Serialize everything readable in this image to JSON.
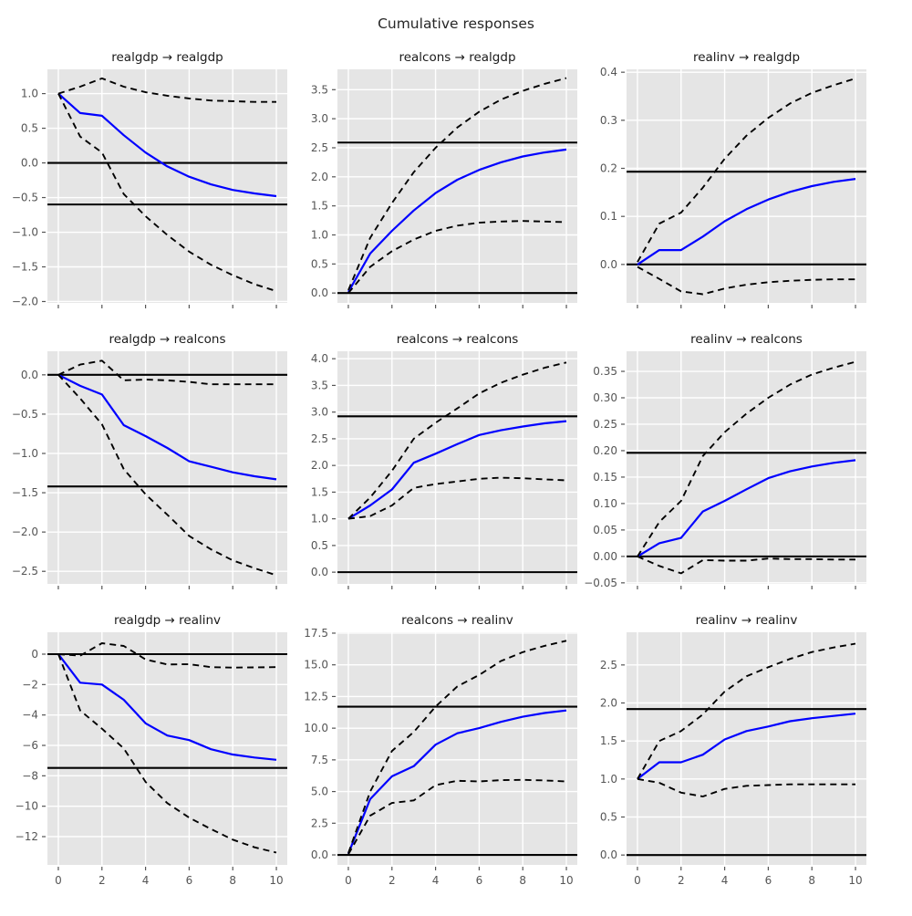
{
  "figure": {
    "title": "Cumulative responses"
  },
  "colors": {
    "plot_bg": "#e5e5e5",
    "grid": "#ffffff",
    "response_line": "#0000ff",
    "band_line": "#000000",
    "hline": "#000000",
    "tick": "#555555"
  },
  "chart_data": {
    "type": "line",
    "title": "Cumulative responses",
    "x": [
      0,
      1,
      2,
      3,
      4,
      5,
      6,
      7,
      8,
      9,
      10
    ],
    "xlim": [
      -0.5,
      10.5
    ],
    "x_ticks": [
      0,
      2,
      4,
      6,
      8,
      10
    ],
    "x_tick_labels": [
      "0",
      "2",
      "4",
      "6",
      "8",
      "10"
    ],
    "grid": true,
    "legend": "none",
    "line_styles": {
      "response": "solid blue",
      "upper_ci": "dashed black",
      "lower_ci": "dashed black",
      "hlines": "solid black"
    },
    "subplots": [
      {
        "title": "realgdp → realgdp",
        "row": 0,
        "col": 0,
        "ylim": [
          -2.02,
          1.35
        ],
        "yticks": [
          1.0,
          0.5,
          0.0,
          -0.5,
          -1.0,
          -1.5,
          -2.0
        ],
        "ytick_labels": [
          "1.0",
          "0.5",
          "0.0",
          "−0.5",
          "−1.0",
          "−1.5",
          "−2.0"
        ],
        "show_x_labels": false,
        "hlines": [
          0.0,
          -0.6
        ],
        "series": [
          {
            "name": "response",
            "values": [
              1.0,
              0.72,
              0.68,
              0.4,
              0.15,
              -0.05,
              -0.2,
              -0.31,
              -0.39,
              -0.44,
              -0.48
            ]
          },
          {
            "name": "upper_ci",
            "values": [
              1.0,
              1.1,
              1.22,
              1.1,
              1.02,
              0.97,
              0.93,
              0.9,
              0.89,
              0.88,
              0.88
            ]
          },
          {
            "name": "lower_ci",
            "values": [
              1.0,
              0.38,
              0.15,
              -0.45,
              -0.77,
              -1.04,
              -1.28,
              -1.47,
              -1.62,
              -1.75,
              -1.85
            ]
          }
        ]
      },
      {
        "title": "realcons → realgdp",
        "row": 0,
        "col": 1,
        "ylim": [
          -0.17,
          3.85
        ],
        "yticks": [
          3.5,
          3.0,
          2.5,
          2.0,
          1.5,
          1.0,
          0.5,
          0.0
        ],
        "ytick_labels": [
          "3.5",
          "3.0",
          "2.5",
          "2.0",
          "1.5",
          "1.0",
          "0.5",
          "0.0"
        ],
        "show_x_labels": false,
        "hlines": [
          0.0,
          2.59
        ],
        "series": [
          {
            "name": "response",
            "values": [
              0.02,
              0.68,
              1.07,
              1.42,
              1.72,
              1.95,
              2.12,
              2.25,
              2.35,
              2.42,
              2.47
            ]
          },
          {
            "name": "upper_ci",
            "values": [
              0.05,
              0.95,
              1.55,
              2.08,
              2.5,
              2.85,
              3.12,
              3.33,
              3.48,
              3.6,
              3.7
            ]
          },
          {
            "name": "lower_ci",
            "values": [
              0.0,
              0.45,
              0.72,
              0.92,
              1.07,
              1.16,
              1.21,
              1.23,
              1.24,
              1.23,
              1.22
            ]
          }
        ]
      },
      {
        "title": "realinv → realgdp",
        "row": 0,
        "col": 2,
        "ylim": [
          -0.08,
          0.406
        ],
        "yticks": [
          0.4,
          0.3,
          0.2,
          0.1,
          0.0
        ],
        "ytick_labels": [
          "0.4",
          "0.3",
          "0.2",
          "0.1",
          "0.0"
        ],
        "show_x_labels": false,
        "hlines": [
          0.0,
          0.193
        ],
        "series": [
          {
            "name": "response",
            "values": [
              0.0,
              0.03,
              0.03,
              0.058,
              0.09,
              0.115,
              0.135,
              0.151,
              0.163,
              0.172,
              0.178
            ]
          },
          {
            "name": "upper_ci",
            "values": [
              0.005,
              0.085,
              0.108,
              0.16,
              0.22,
              0.268,
              0.305,
              0.335,
              0.357,
              0.373,
              0.387
            ]
          },
          {
            "name": "lower_ci",
            "values": [
              -0.005,
              -0.03,
              -0.056,
              -0.062,
              -0.05,
              -0.042,
              -0.037,
              -0.034,
              -0.032,
              -0.031,
              -0.031
            ]
          }
        ]
      },
      {
        "title": "realgdp → realcons",
        "row": 1,
        "col": 0,
        "ylim": [
          -2.66,
          0.3
        ],
        "yticks": [
          0.0,
          -0.5,
          -1.0,
          -1.5,
          -2.0,
          -2.5
        ],
        "ytick_labels": [
          "0.0",
          "−0.5",
          "−1.0",
          "−1.5",
          "−2.0",
          "−2.5"
        ],
        "show_x_labels": false,
        "hlines": [
          0.0,
          -1.42
        ],
        "series": [
          {
            "name": "response",
            "values": [
              0.0,
              -0.14,
              -0.25,
              -0.64,
              -0.78,
              -0.93,
              -1.1,
              -1.17,
              -1.24,
              -1.29,
              -1.33
            ]
          },
          {
            "name": "upper_ci",
            "values": [
              0.0,
              0.13,
              0.18,
              -0.07,
              -0.06,
              -0.07,
              -0.09,
              -0.12,
              -0.12,
              -0.12,
              -0.12
            ]
          },
          {
            "name": "lower_ci",
            "values": [
              0.0,
              -0.3,
              -0.63,
              -1.2,
              -1.52,
              -1.78,
              -2.05,
              -2.22,
              -2.36,
              -2.46,
              -2.55
            ]
          }
        ]
      },
      {
        "title": "realcons → realcons",
        "row": 1,
        "col": 1,
        "ylim": [
          -0.22,
          4.14
        ],
        "yticks": [
          4.0,
          3.5,
          3.0,
          2.5,
          2.0,
          1.5,
          1.0,
          0.5,
          0.0
        ],
        "ytick_labels": [
          "4.0",
          "3.5",
          "3.0",
          "2.5",
          "2.0",
          "1.5",
          "1.0",
          "0.5",
          "0.0"
        ],
        "show_x_labels": false,
        "hlines": [
          0.0,
          2.92
        ],
        "series": [
          {
            "name": "response",
            "values": [
              1.0,
              1.25,
              1.55,
              2.05,
              2.22,
              2.4,
              2.57,
              2.66,
              2.73,
              2.79,
              2.83
            ]
          },
          {
            "name": "upper_ci",
            "values": [
              1.0,
              1.4,
              1.9,
              2.5,
              2.8,
              3.07,
              3.35,
              3.55,
              3.7,
              3.83,
              3.93
            ]
          },
          {
            "name": "lower_ci",
            "values": [
              1.0,
              1.05,
              1.25,
              1.58,
              1.65,
              1.7,
              1.75,
              1.77,
              1.76,
              1.74,
              1.72
            ]
          }
        ]
      },
      {
        "title": "realinv → realcons",
        "row": 1,
        "col": 2,
        "ylim": [
          -0.052,
          0.388
        ],
        "yticks": [
          0.35,
          0.3,
          0.25,
          0.2,
          0.15,
          0.1,
          0.05,
          0.0,
          -0.05
        ],
        "ytick_labels": [
          "0.35",
          "0.30",
          "0.25",
          "0.20",
          "0.15",
          "0.10",
          "0.05",
          "0.00",
          "−0.05"
        ],
        "show_x_labels": false,
        "hlines": [
          0.0,
          0.196
        ],
        "series": [
          {
            "name": "response",
            "values": [
              0.0,
              0.025,
              0.035,
              0.085,
              0.105,
              0.127,
              0.148,
              0.161,
              0.17,
              0.177,
              0.182
            ]
          },
          {
            "name": "upper_ci",
            "values": [
              0.0,
              0.065,
              0.105,
              0.19,
              0.235,
              0.27,
              0.3,
              0.325,
              0.344,
              0.357,
              0.368
            ]
          },
          {
            "name": "lower_ci",
            "values": [
              0.0,
              -0.018,
              -0.032,
              -0.007,
              -0.008,
              -0.008,
              -0.004,
              -0.005,
              -0.005,
              -0.006,
              -0.006
            ]
          }
        ]
      },
      {
        "title": "realgdp → realinv",
        "row": 2,
        "col": 0,
        "ylim": [
          -13.86,
          1.44
        ],
        "yticks": [
          0,
          -2,
          -4,
          -6,
          -8,
          -10,
          -12
        ],
        "ytick_labels": [
          "0",
          "−2",
          "−4",
          "−6",
          "−8",
          "−10",
          "−12"
        ],
        "show_x_labels": true,
        "hlines": [
          0.0,
          -7.48
        ],
        "series": [
          {
            "name": "response",
            "values": [
              0.0,
              -1.88,
              -2.0,
              -3.0,
              -4.55,
              -5.35,
              -5.65,
              -6.25,
              -6.6,
              -6.8,
              -6.95
            ]
          },
          {
            "name": "upper_ci",
            "values": [
              0.0,
              -0.1,
              0.72,
              0.54,
              -0.35,
              -0.68,
              -0.66,
              -0.85,
              -0.88,
              -0.87,
              -0.85
            ]
          },
          {
            "name": "lower_ci",
            "values": [
              0.0,
              -3.7,
              -4.9,
              -6.2,
              -8.4,
              -9.8,
              -10.75,
              -11.5,
              -12.2,
              -12.7,
              -13.05
            ]
          }
        ]
      },
      {
        "title": "realcons → realinv",
        "row": 2,
        "col": 1,
        "ylim": [
          -0.79,
          17.57
        ],
        "yticks": [
          17.5,
          15.0,
          12.5,
          10.0,
          7.5,
          5.0,
          2.5,
          0.0
        ],
        "ytick_labels": [
          "17.5",
          "15.0",
          "12.5",
          "10.0",
          "7.5",
          "5.0",
          "2.5",
          "0.0"
        ],
        "show_x_labels": true,
        "hlines": [
          0.0,
          11.7
        ],
        "series": [
          {
            "name": "response",
            "values": [
              0.1,
              4.4,
              6.2,
              7.0,
              8.7,
              9.6,
              10.0,
              10.5,
              10.9,
              11.2,
              11.4
            ]
          },
          {
            "name": "upper_ci",
            "values": [
              0.15,
              5.0,
              8.2,
              9.7,
              11.7,
              13.3,
              14.2,
              15.3,
              16.0,
              16.5,
              16.9
            ]
          },
          {
            "name": "lower_ci",
            "values": [
              0.05,
              3.1,
              4.1,
              4.3,
              5.5,
              5.85,
              5.8,
              5.9,
              5.92,
              5.88,
              5.8
            ]
          }
        ]
      },
      {
        "title": "realinv → realinv",
        "row": 2,
        "col": 2,
        "ylim": [
          -0.13,
          2.93
        ],
        "yticks": [
          2.5,
          2.0,
          1.5,
          1.0,
          0.5,
          0.0
        ],
        "ytick_labels": [
          "2.5",
          "2.0",
          "1.5",
          "1.0",
          "0.5",
          "0.0"
        ],
        "show_x_labels": true,
        "hlines": [
          0.0,
          1.92
        ],
        "series": [
          {
            "name": "response",
            "values": [
              1.0,
              1.22,
              1.22,
              1.32,
              1.52,
              1.63,
              1.69,
              1.76,
              1.8,
              1.83,
              1.86
            ]
          },
          {
            "name": "upper_ci",
            "values": [
              1.0,
              1.5,
              1.63,
              1.85,
              2.15,
              2.35,
              2.47,
              2.58,
              2.67,
              2.73,
              2.78
            ]
          },
          {
            "name": "lower_ci",
            "values": [
              1.0,
              0.95,
              0.82,
              0.77,
              0.87,
              0.91,
              0.92,
              0.93,
              0.93,
              0.93,
              0.93
            ]
          }
        ]
      }
    ]
  }
}
